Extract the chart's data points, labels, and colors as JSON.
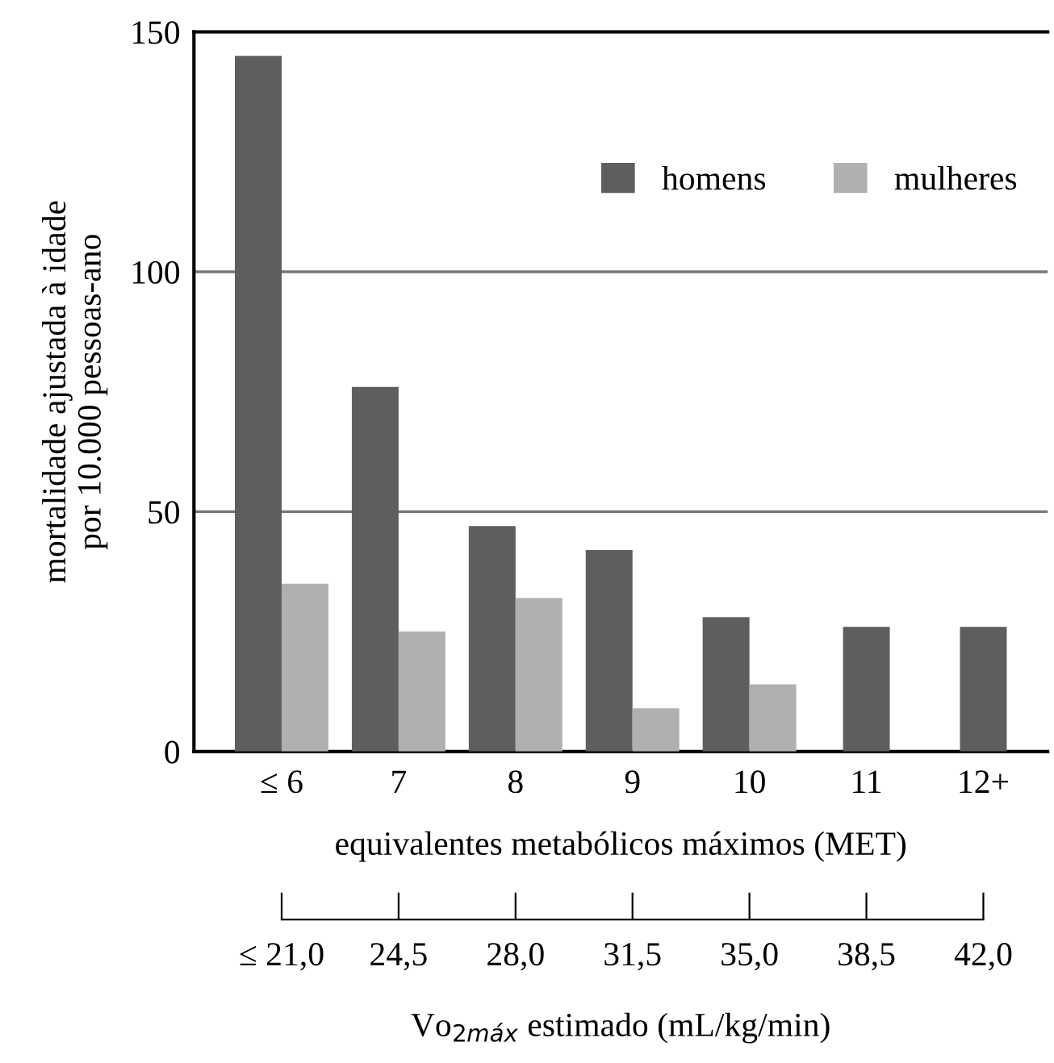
{
  "chart_data": {
    "type": "bar",
    "categories": [
      "≤ 6",
      "7",
      "8",
      "9",
      "10",
      "11",
      "12+"
    ],
    "series": [
      {
        "name": "homens",
        "color": "#5e5e5e",
        "values": [
          145,
          76,
          47,
          42,
          28,
          26,
          26
        ]
      },
      {
        "name": "mulheres",
        "color": "#b0b0b0",
        "values": [
          35,
          25,
          32,
          9,
          14,
          null,
          null
        ]
      }
    ],
    "xlabel": "equivalentes metabólicos máximos (MET)",
    "ylabel": "mortalidade ajustada à idade\npor 10.000 pessoas-ano",
    "ylim": [
      0,
      150
    ],
    "yticks": [
      0,
      50,
      100,
      150
    ],
    "x2label": "Vo$_{2máx}$ estimado (mL/kg/min)",
    "x2lim": [
      21,
      42
    ],
    "x2ticks": [
      {
        "value": 21,
        "label": "≤ 21,0"
      },
      {
        "value": 24.5,
        "label": "24,5"
      },
      {
        "value": 28,
        "label": "28,0"
      },
      {
        "value": 31.5,
        "label": "31,5"
      },
      {
        "value": 35,
        "label": "35,0"
      },
      {
        "value": 38.5,
        "label": "38,5"
      },
      {
        "value": 42,
        "label": "42,0"
      }
    ],
    "grid": "y",
    "legend": "top right"
  }
}
